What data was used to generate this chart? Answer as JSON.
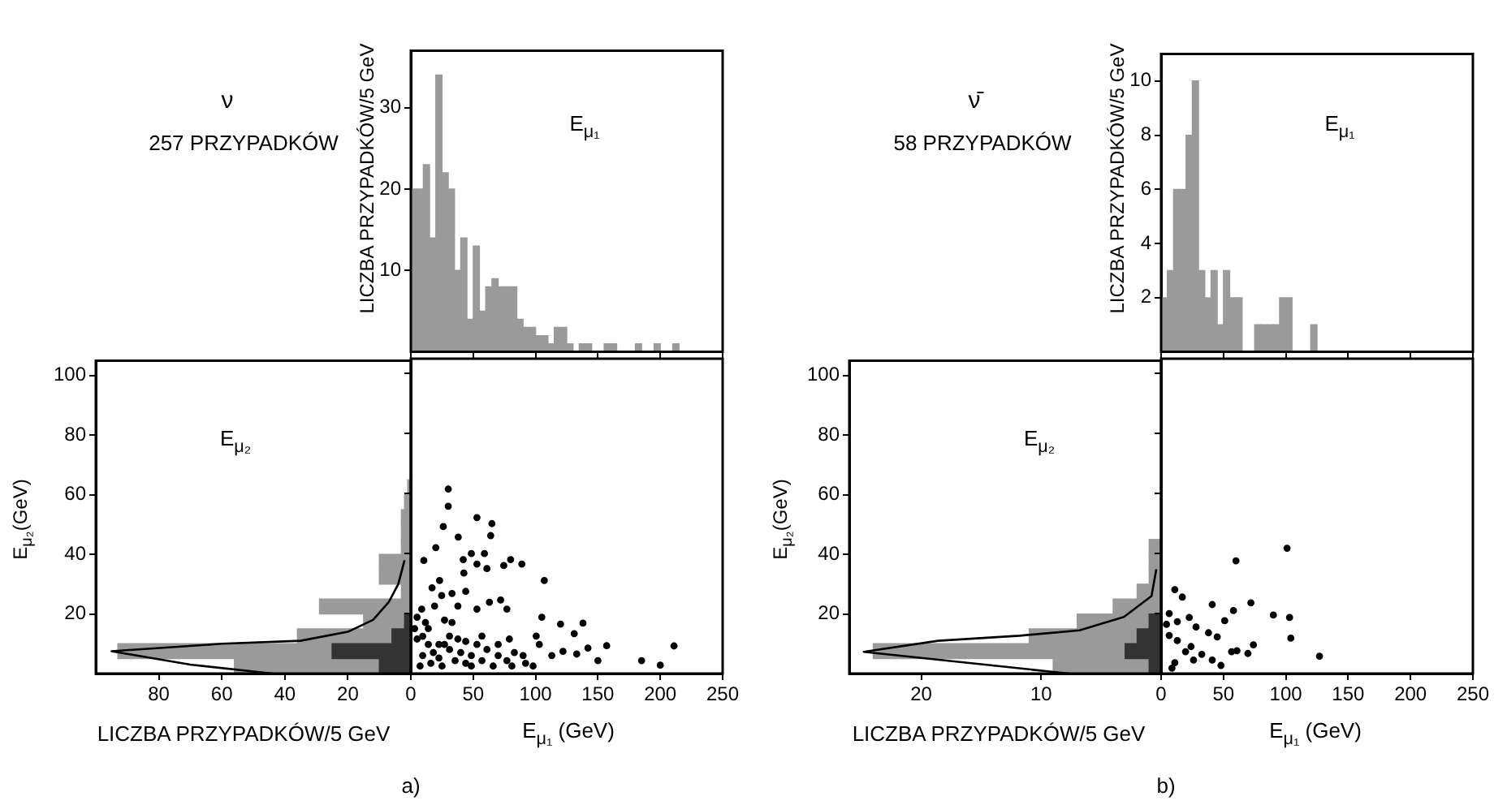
{
  "chart_data": [
    {
      "type": "histogram",
      "ylabel": "LICZBA PRZYPADKÓW/5 GeV",
      "annotations": [
        "ν",
        "257 PRZYPADKÓW",
        "E$_{μ₁}$"
      ],
      "bins": [
        0,
        5,
        10,
        15,
        20,
        25,
        30,
        35,
        40,
        45,
        50,
        55,
        60,
        65,
        70,
        75,
        80,
        85,
        90,
        95,
        100,
        105,
        110,
        115,
        120,
        125,
        130,
        135,
        140,
        145,
        150,
        155,
        160,
        165,
        170,
        175,
        180,
        185,
        190,
        195,
        200,
        205,
        210,
        215,
        220
      ],
      "series": [
        {
          "color": "#9a9a9a",
          "values": [
            20,
            20,
            23,
            14,
            34,
            22,
            20,
            10,
            14,
            4,
            13,
            5,
            8,
            9,
            8,
            8,
            8,
            4,
            3,
            3,
            2,
            2,
            1,
            3,
            3,
            1,
            0,
            1,
            1,
            0,
            0,
            1,
            1,
            0,
            0,
            0,
            1,
            0,
            0,
            1,
            0,
            0,
            1,
            0
          ]
        }
      ],
      "xlim": [
        0,
        250
      ],
      "xticks": [
        0,
        50,
        100,
        150,
        200,
        250
      ],
      "ylim": [
        0,
        37
      ],
      "yticks": [
        10,
        20,
        30
      ],
      "tick_labels": "y"
    },
    {
      "type": "histogram",
      "orientation": "horizontal",
      "xlabel": "LICZBA PRZYPADKÓW/5 GeV",
      "ylabel": "E$_{μ₂}$(GeV)",
      "annotations": [
        "E$_{μ₂}$",
        "a)"
      ],
      "bins": [
        0,
        5,
        10,
        15,
        20,
        25,
        30,
        35,
        40,
        45,
        50,
        55,
        60,
        65
      ],
      "series": [
        {
          "color": "#9a9a9a",
          "values": [
            56,
            93,
            36,
            15,
            29,
            3,
            10,
            10,
            3,
            3,
            3,
            2,
            1
          ]
        },
        {
          "color": "#333333",
          "values": [
            10,
            25,
            6,
            2,
            0,
            0,
            0,
            0,
            0,
            0,
            0,
            0,
            0
          ]
        },
        {
          "type": "line",
          "color": "#000000",
          "x": [
            0,
            3,
            7.5,
            10,
            11,
            14,
            18,
            24,
            30,
            38
          ],
          "values": [
            44,
            70,
            95,
            60,
            35,
            20,
            12,
            7,
            4,
            2
          ]
        }
      ],
      "xlim": [
        100,
        0
      ],
      "xticks": [
        80,
        60,
        40,
        20,
        {
          "value": 0,
          "label": null
        }
      ],
      "ylim": [
        0,
        105
      ],
      "yticks": [
        20,
        40,
        60,
        80,
        100
      ]
    },
    {
      "type": "scatter",
      "xlabel": "E$_{μ₁}$ (GeV)",
      "marker": "circle",
      "series": [
        {
          "color": "#000000",
          "x": [
            30,
            30,
            53,
            65,
            26,
            64,
            38,
            59,
            48.5,
            42,
            53,
            61,
            74.5,
            89,
            80,
            20,
            10.4,
            42.5,
            23,
            17,
            107,
            33,
            44,
            24.7,
            19,
            8.7,
            53,
            63,
            72,
            77,
            37.7,
            105,
            120,
            138,
            131,
            27,
            14,
            79,
            100.5,
            103,
            157,
            211,
            142,
            122,
            113,
            133,
            150,
            185,
            200,
            98,
            5,
            9.5,
            14,
            18,
            22.5,
            27,
            31,
            35.5,
            40,
            44,
            48.5,
            53,
            57,
            61,
            66,
            70,
            77,
            83,
            90,
            7.4,
            16,
            25,
            31,
            37.7,
            48.5,
            9.5,
            22.5,
            3,
            5,
            11.7,
            33,
            44,
            57,
            70,
            81,
            92
          ],
          "values": [
            61.5,
            55.8,
            52,
            50,
            49,
            46,
            45.5,
            40,
            40,
            38,
            36.5,
            35,
            36,
            36.5,
            38,
            42,
            37.7,
            33.5,
            31,
            28.6,
            31,
            26.7,
            27.4,
            26,
            22.5,
            21.5,
            21.5,
            23.8,
            24.5,
            21.5,
            22.5,
            18.8,
            16.5,
            16.8,
            13.3,
            17.8,
            15,
            11.5,
            12.5,
            9.7,
            9.3,
            9.2,
            8.5,
            7.4,
            6,
            6.5,
            4.3,
            4.3,
            2.8,
            2.5,
            11.5,
            12.4,
            9.7,
            7,
            5.2,
            9.7,
            8,
            4.3,
            7,
            3.4,
            6,
            9.7,
            4.3,
            8,
            2.5,
            6,
            4.3,
            7,
            6,
            2.5,
            3.4,
            2.5,
            12.5,
            11.5,
            2.5,
            6,
            9.7,
            15,
            18.8,
            17,
            17,
            10.7,
            12.5,
            9.7,
            2.5,
            3.4
          ]
        }
      ],
      "xlim": [
        0,
        250
      ],
      "xticks": [
        0,
        50,
        100,
        150,
        200,
        250
      ],
      "ylim": [
        0,
        105
      ],
      "yticks": [
        20,
        40,
        60,
        80,
        100
      ],
      "tick_labels": "x"
    },
    {
      "type": "histogram",
      "ylabel": "LICZBA PRZYPADKÓW/5 GeV",
      "annotations": [
        "ν̄",
        "58 PRZYPADKÓW",
        "E$_{μ₁}$"
      ],
      "bins": [
        0,
        5,
        10,
        15,
        20,
        25,
        30,
        35,
        40,
        45,
        50,
        55,
        60,
        65,
        70,
        75,
        80,
        85,
        90,
        95,
        100,
        105,
        110,
        115,
        120,
        125
      ],
      "series": [
        {
          "color": "#9a9a9a",
          "values": [
            2,
            3,
            6,
            6,
            8,
            10,
            3,
            2,
            3,
            1,
            3,
            2,
            2,
            0,
            0,
            1,
            1,
            1,
            1,
            2,
            2,
            0,
            0,
            0,
            1
          ]
        }
      ],
      "xlim": [
        0,
        250
      ],
      "xticks": [
        0,
        50,
        100,
        150,
        200,
        250
      ],
      "ylim": [
        0,
        11
      ],
      "yticks": [
        2,
        4,
        6,
        8,
        10
      ],
      "tick_labels": "y"
    },
    {
      "type": "histogram",
      "orientation": "horizontal",
      "xlabel": "LICZBA PRZYPADKÓW/5 GeV",
      "ylabel": "E$_{μ₂}$(GeV)",
      "annotations": [
        "E$_{μ₂}$",
        "b)"
      ],
      "bins": [
        0,
        5,
        10,
        15,
        20,
        25,
        30,
        35,
        40,
        45
      ],
      "series": [
        {
          "color": "#9a9a9a",
          "values": [
            9,
            24,
            11,
            7,
            4,
            2,
            1,
            1,
            1
          ]
        },
        {
          "color": "#333333",
          "values": [
            1,
            3,
            2,
            1,
            0,
            0,
            0,
            0,
            0
          ]
        },
        {
          "type": "line",
          "color": "#000000",
          "x": [
            0,
            7.3,
            11,
            12.7,
            14.5,
            19,
            26,
            35
          ],
          "values": [
            7.7,
            24.8,
            18.6,
            11.8,
            6.8,
            3.1,
            0.8,
            0.4
          ]
        }
      ],
      "xlim": [
        26,
        0
      ],
      "xticks": [
        20,
        10,
        {
          "value": 0,
          "label": null
        }
      ],
      "ylim": [
        0,
        105
      ],
      "yticks": [
        20,
        40,
        60,
        80,
        100
      ]
    },
    {
      "type": "scatter",
      "xlabel": "E$_{μ₁}$ (GeV)",
      "marker": "circle",
      "series": [
        {
          "color": "#000000",
          "x": [
            101,
            60,
            72,
            41,
            58,
            51,
            90,
            103,
            104,
            127,
            11,
            17,
            6.5,
            13,
            22.6,
            28,
            38,
            45,
            6.5,
            13,
            24,
            19.6,
            32.6,
            41,
            48,
            11,
            8.7,
            26,
            56.5,
            69.6,
            74,
            60.8,
            4.3
          ],
          "values": [
            41.8,
            37.6,
            23.6,
            23,
            21,
            17.6,
            19.5,
            18.7,
            11.8,
            5.8,
            28,
            25.5,
            20,
            17.3,
            18.7,
            15.5,
            13.6,
            12.2,
            12.7,
            11,
            9,
            7.3,
            6.4,
            4.5,
            2.7,
            3.6,
            1.8,
            4.5,
            7.3,
            6.7,
            9.6,
            7.6,
            16.4
          ]
        }
      ],
      "xlim": [
        0,
        250
      ],
      "xticks": [
        0,
        50,
        100,
        150,
        200,
        250
      ],
      "ylim": [
        0,
        105
      ],
      "yticks": [
        20,
        40,
        60,
        80,
        100
      ],
      "tick_labels": "x"
    }
  ]
}
